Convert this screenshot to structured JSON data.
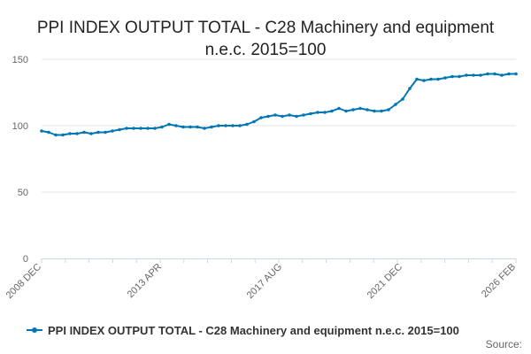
{
  "chart_data": {
    "type": "line",
    "title_lines": [
      "PPI INDEX OUTPUT TOTAL - C28 Machinery and equipment",
      "n.e.c. 2015=100"
    ],
    "xlabel": "",
    "ylabel": "",
    "ylim": [
      0,
      150
    ],
    "y_ticks": [
      0,
      50,
      100,
      150
    ],
    "x_tick_labels": [
      "2008 DEC",
      "2013 APR",
      "2017 AUG",
      "2021 DEC",
      "2026 FEB"
    ],
    "legend_position": "bottom",
    "grid": "horizontal",
    "series": [
      {
        "name": "PPI INDEX OUTPUT TOTAL - C28 Machinery and equipment n.e.c. 2015=100",
        "color": "#0077b5",
        "x": [
          "2008 DEC",
          "2009 MAR",
          "2009 JUN",
          "2009 SEP",
          "2009 DEC",
          "2010 MAR",
          "2010 JUN",
          "2010 SEP",
          "2010 DEC",
          "2011 MAR",
          "2011 JUN",
          "2011 SEP",
          "2011 DEC",
          "2012 MAR",
          "2012 JUN",
          "2012 SEP",
          "2012 DEC",
          "2013 APR",
          "2013 JUL",
          "2013 OCT",
          "2014 JAN",
          "2014 APR",
          "2014 JUL",
          "2014 OCT",
          "2015 JAN",
          "2015 APR",
          "2015 JUL",
          "2015 OCT",
          "2016 JAN",
          "2016 APR",
          "2016 JUL",
          "2016 OCT",
          "2017 JAN",
          "2017 APR",
          "2017 AUG",
          "2017 NOV",
          "2018 FEB",
          "2018 MAY",
          "2018 AUG",
          "2018 NOV",
          "2019 FEB",
          "2019 MAY",
          "2019 AUG",
          "2019 NOV",
          "2020 FEB",
          "2020 MAY",
          "2020 AUG",
          "2020 NOV",
          "2021 FEB",
          "2021 MAY",
          "2021 AUG",
          "2021 DEC",
          "2022 MAR",
          "2022 JUN",
          "2022 SEP",
          "2022 DEC",
          "2023 MAR",
          "2023 JUN",
          "2023 SEP",
          "2023 DEC",
          "2024 MAR",
          "2024 JUN",
          "2024 SEP",
          "2024 DEC",
          "2025 MAR",
          "2025 JUN",
          "2025 SEP",
          "2026 FEB"
        ],
        "values": [
          96,
          95,
          93,
          93,
          94,
          94,
          95,
          94,
          95,
          95,
          96,
          97,
          98,
          98,
          98,
          98,
          98,
          99,
          101,
          100,
          99,
          99,
          99,
          98,
          99,
          100,
          100,
          100,
          100,
          101,
          103,
          106,
          107,
          108,
          107,
          108,
          107,
          108,
          109,
          110,
          110,
          111,
          113,
          111,
          112,
          113,
          112,
          111,
          111,
          112,
          116,
          120,
          128,
          135,
          134,
          135,
          135,
          136,
          137,
          137,
          138,
          138,
          138,
          139,
          139,
          138,
          139,
          139
        ]
      }
    ]
  },
  "legend": {
    "label": "PPI INDEX OUTPUT TOTAL - C28 Machinery and equipment n.e.c. 2015=100"
  },
  "credit": "Source:"
}
